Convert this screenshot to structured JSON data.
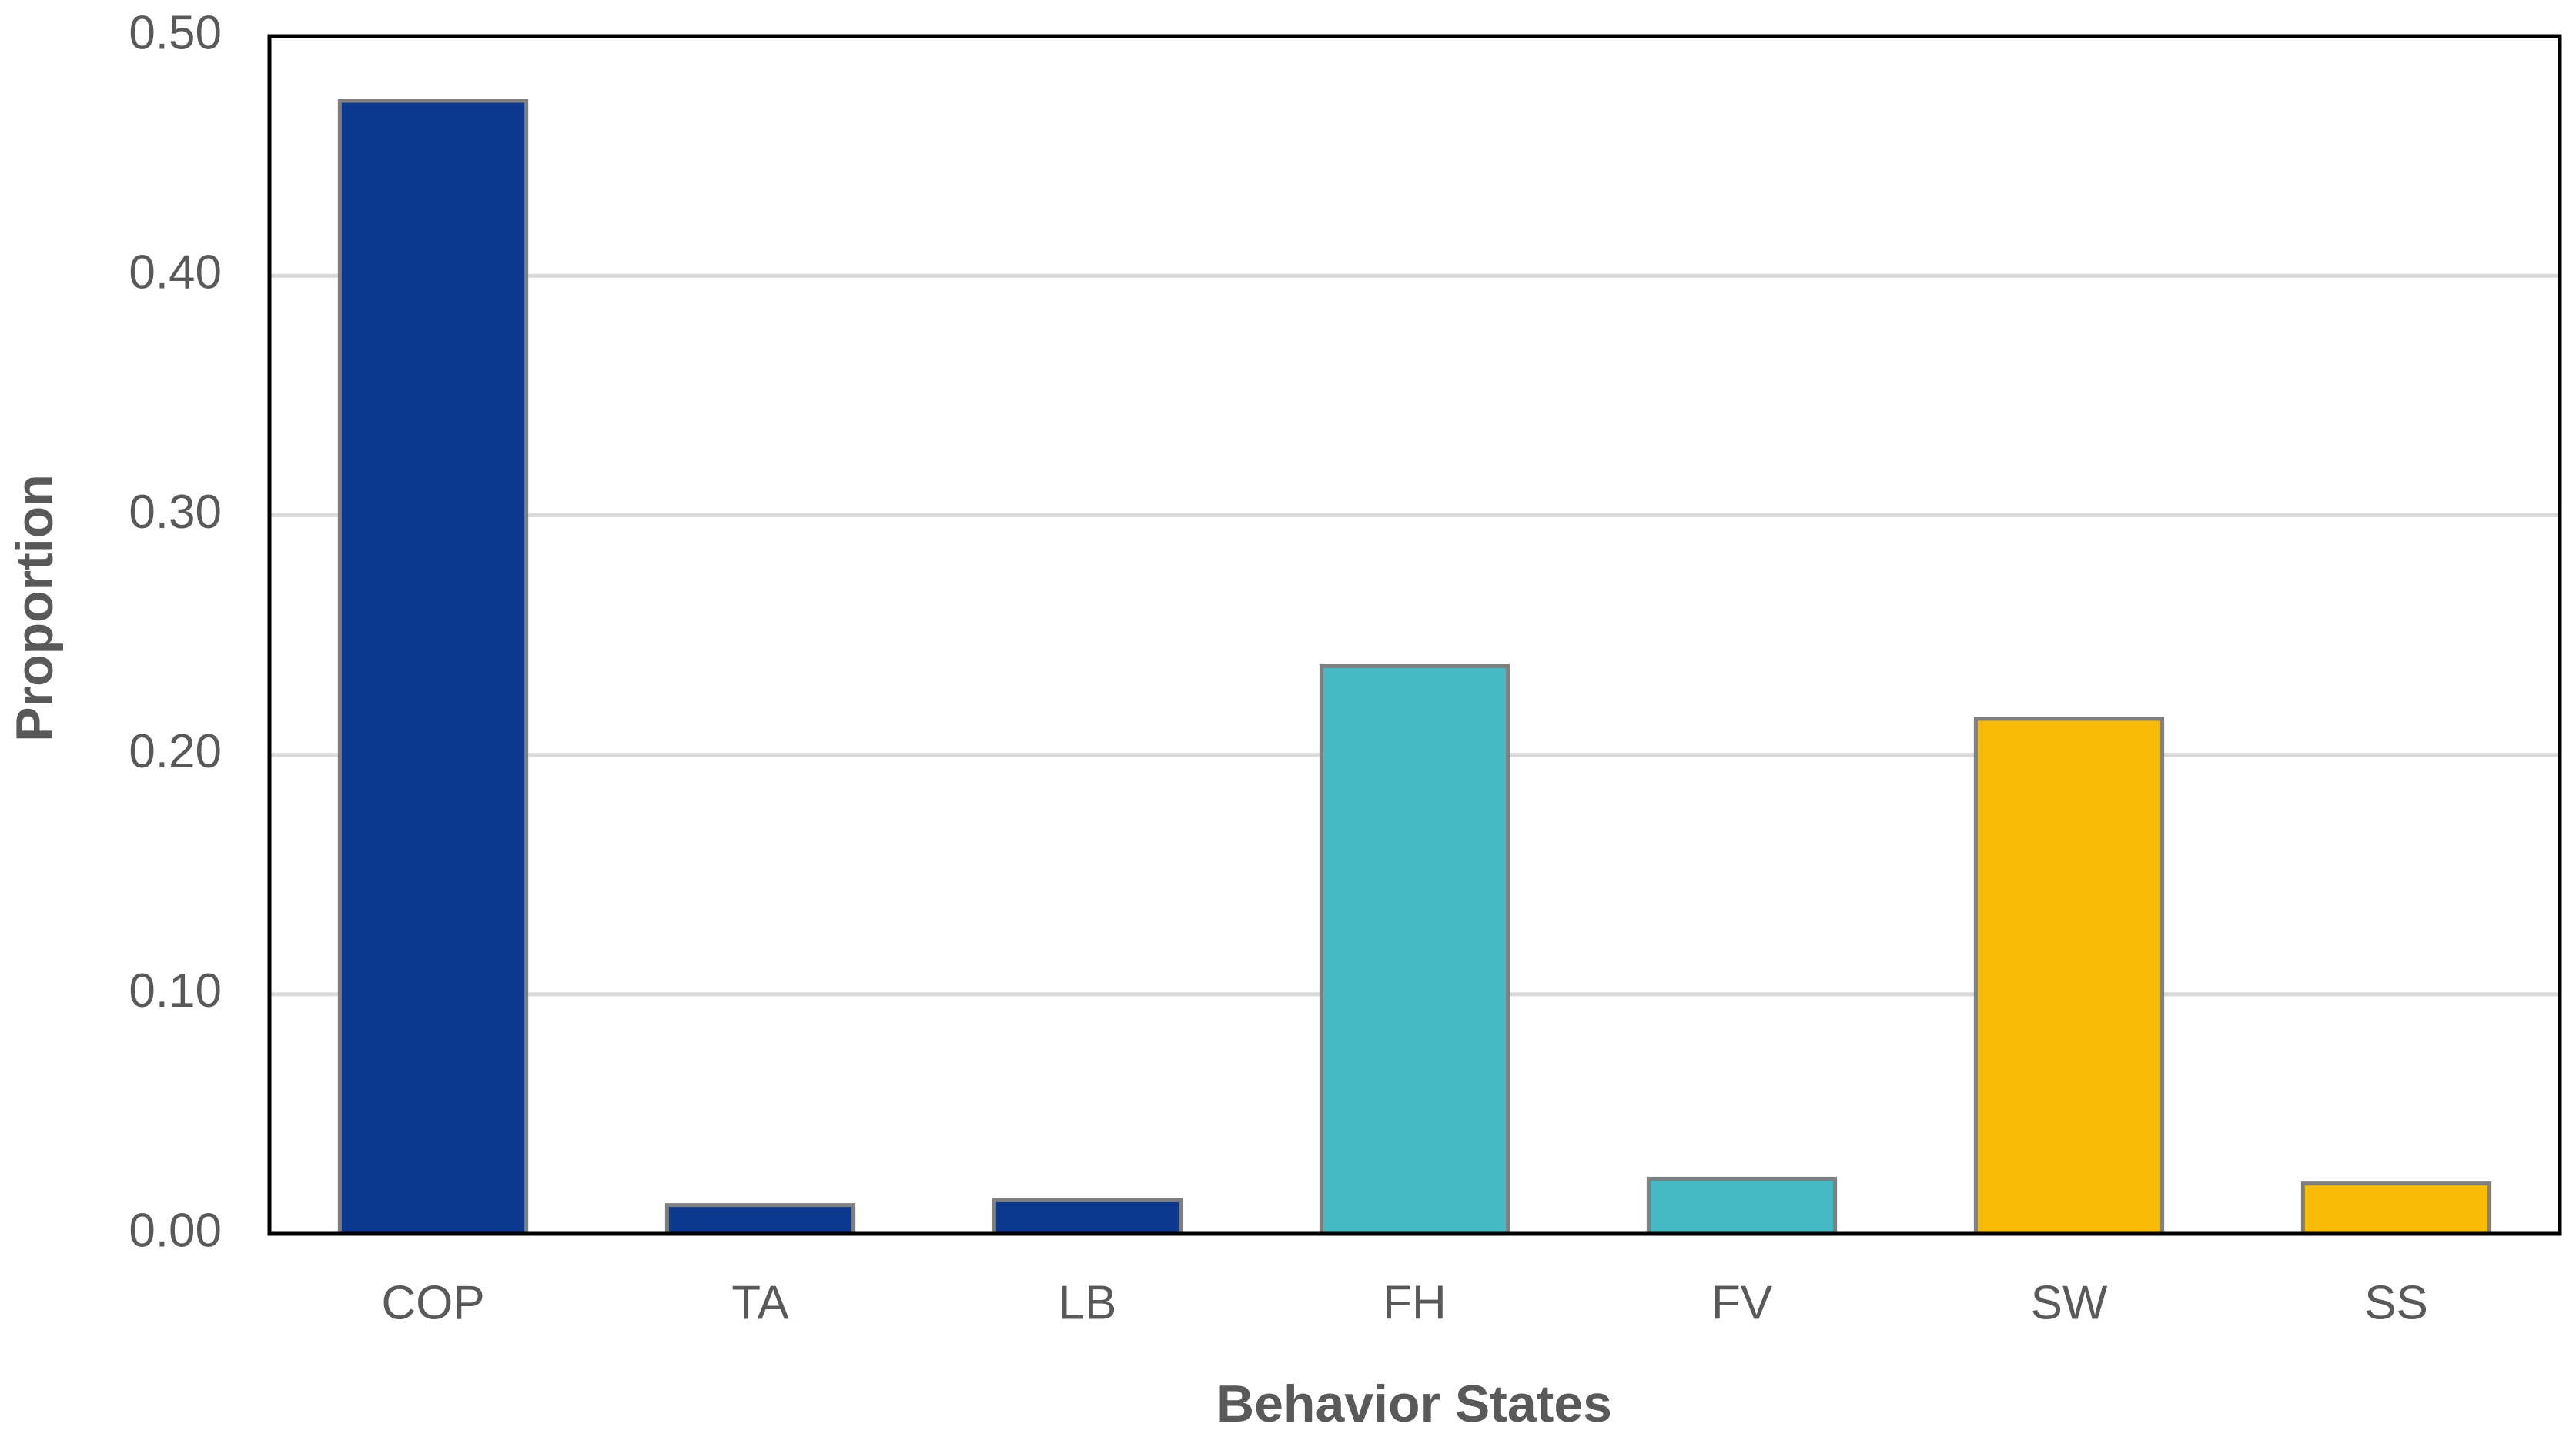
{
  "chart_data": {
    "type": "bar",
    "x_label": "Behavior States",
    "y_label": "Proportion",
    "categories": [
      "COP",
      "TA",
      "LB",
      "FH",
      "FV",
      "SW",
      "SS"
    ],
    "values": [
      0.473,
      0.012,
      0.014,
      0.237,
      0.023,
      0.215,
      0.021
    ],
    "colors": [
      "#0d3a8e",
      "#0d3a8e",
      "#0d3a8e",
      "#46bac4",
      "#46bac4",
      "#f8bb06",
      "#f8bb06"
    ],
    "ylim": [
      0,
      0.5
    ],
    "yticks": [
      {
        "value": 0,
        "label": "0.00"
      },
      {
        "value": 0.1,
        "label": "0.10"
      },
      {
        "value": 0.2,
        "label": "0.20"
      },
      {
        "value": 0.3,
        "label": "0.30"
      },
      {
        "value": 0.4,
        "label": "0.40"
      },
      {
        "value": 0.5,
        "label": "0.50"
      }
    ],
    "grid": true
  }
}
